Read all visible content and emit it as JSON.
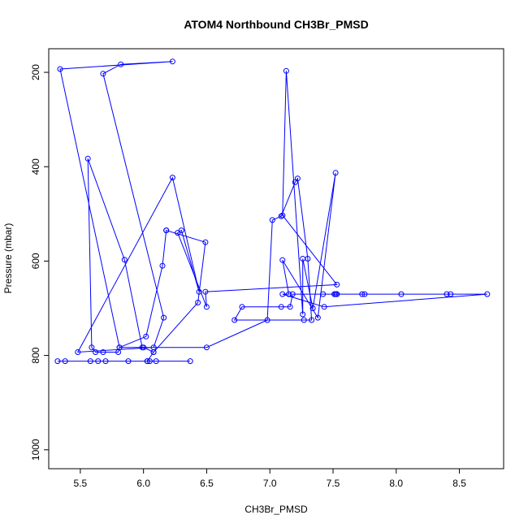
{
  "chart_data": {
    "type": "line",
    "title": "ATOM4 Northbound CH3Br_PMSD",
    "xlabel": "CH3Br_PMSD",
    "ylabel": "Pressure (mbar)",
    "xlim": [
      5.25,
      8.85
    ],
    "ylim": [
      1040,
      150
    ],
    "y_inverted": true,
    "x_ticks": [
      "5.5",
      "6.0",
      "6.5",
      "7.0",
      "7.5",
      "8.0",
      "8.5"
    ],
    "x_tick_values": [
      5.5,
      6.0,
      6.5,
      7.0,
      7.5,
      8.0,
      8.5
    ],
    "y_ticks": [
      "200",
      "400",
      "600",
      "800",
      "1000"
    ],
    "y_tick_values": [
      200,
      400,
      600,
      800,
      1000
    ],
    "grid": false,
    "series": [
      {
        "color": "#0000ff",
        "x": [
          5.32,
          5.38,
          5.58,
          5.64,
          5.7,
          5.88,
          6.03,
          6.05,
          6.1,
          6.37,
          6.03,
          6.08,
          6.43,
          6.49,
          6.18,
          6.18,
          6.15,
          6.02,
          5.81,
          5.34,
          6.23,
          5.82,
          5.68,
          6.16,
          6.08,
          5.48,
          6.23,
          6.44,
          6.3,
          6.27,
          6.5,
          6.49,
          7.53,
          7.1,
          7.13,
          7.26,
          7.26,
          7.34,
          7.52,
          7.38,
          7.1,
          7.15,
          7.1,
          7.43,
          8.72,
          8.43,
          8.4,
          8.04,
          7.75,
          7.73,
          7.53,
          7.52,
          7.53,
          7.51,
          7.42,
          7.18,
          7.16,
          7.09,
          6.78,
          6.72,
          7.27,
          7.33,
          7.3,
          7.22,
          7.2,
          7.09,
          7.02,
          6.98,
          6.5,
          5.99,
          5.85,
          5.56,
          5.59,
          5.62,
          5.68,
          5.8,
          5.81,
          6.0,
          6.08
        ]
      }
    ],
    "x": [
      5.32,
      5.38,
      5.58,
      5.64,
      5.7,
      5.88,
      6.03,
      6.05,
      6.1,
      6.37,
      6.03,
      6.08,
      6.43,
      6.49,
      6.18,
      6.18,
      6.15,
      6.02,
      5.81,
      5.34,
      6.23,
      5.82,
      5.68,
      6.16,
      6.08,
      5.48,
      6.23,
      6.44,
      6.3,
      6.27,
      6.5,
      6.49,
      7.53,
      7.1,
      7.13,
      7.26,
      7.26,
      7.34,
      7.52,
      7.38,
      7.1,
      7.15,
      7.1,
      7.43,
      8.72,
      8.43,
      8.4,
      8.04,
      7.75,
      7.73,
      7.53,
      7.52,
      7.53,
      7.51,
      7.42,
      7.18,
      7.16,
      7.09,
      6.78,
      6.72,
      7.27,
      7.33,
      7.3,
      7.22,
      7.2,
      7.09,
      7.02,
      6.98,
      6.5,
      5.99,
      5.85,
      5.56,
      5.59,
      5.62,
      5.68,
      5.8,
      5.81,
      6.0,
      6.08
    ],
    "y": [
      812,
      812,
      812,
      812,
      812,
      812,
      812,
      812,
      812,
      812,
      812,
      793,
      688,
      560,
      535,
      535,
      610,
      760,
      783,
      193,
      177,
      183,
      203,
      720,
      783,
      793,
      423,
      665,
      535,
      540,
      697,
      665,
      650,
      503,
      197,
      713,
      595,
      700,
      413,
      720,
      598,
      670,
      670,
      697,
      670,
      670,
      670,
      670,
      670,
      670,
      670,
      670,
      670,
      670,
      670,
      670,
      697,
      697,
      697,
      725,
      725,
      725,
      595,
      425,
      433,
      505,
      513,
      725,
      783,
      783,
      597,
      383,
      783,
      793,
      793,
      793,
      783,
      783,
      793
    ]
  }
}
